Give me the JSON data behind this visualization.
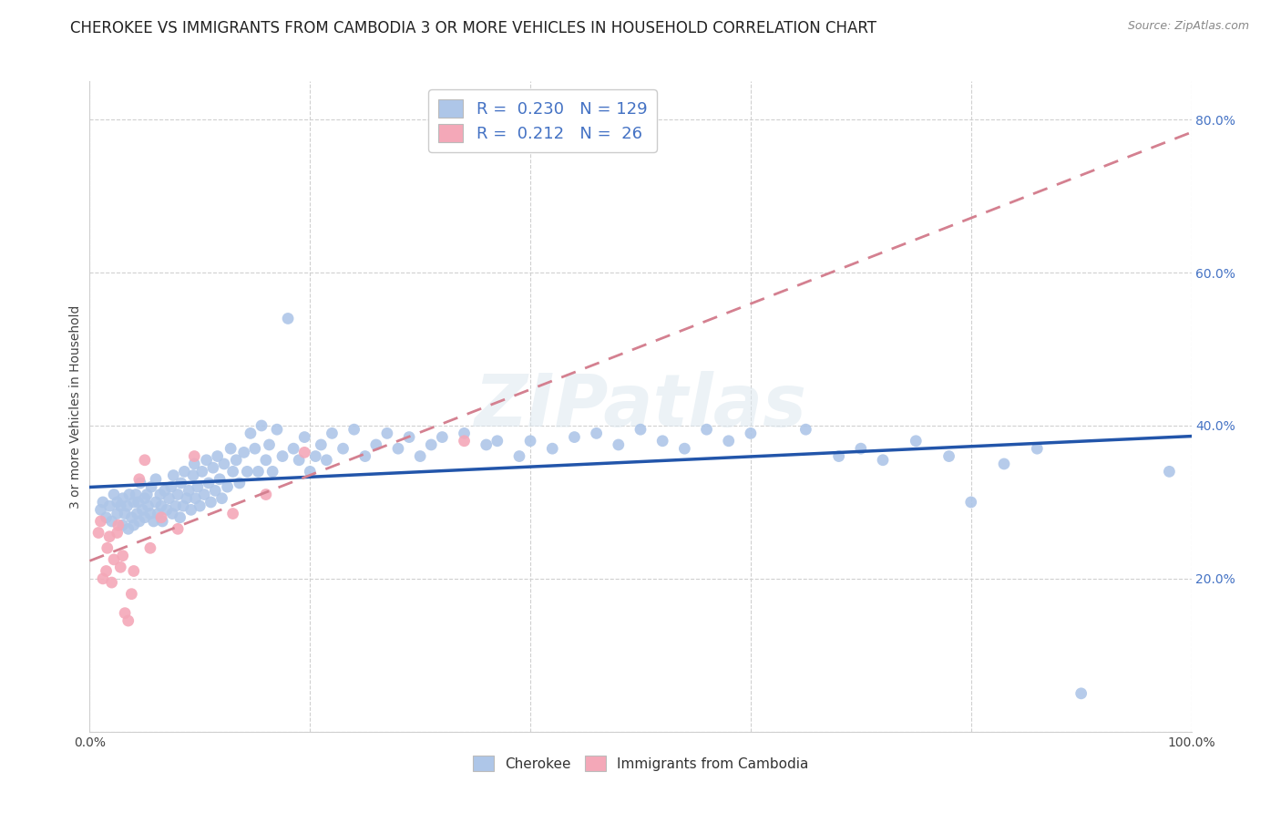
{
  "title": "CHEROKEE VS IMMIGRANTS FROM CAMBODIA 3 OR MORE VEHICLES IN HOUSEHOLD CORRELATION CHART",
  "source": "Source: ZipAtlas.com",
  "ylabel": "3 or more Vehicles in Household",
  "xlim": [
    0,
    1.0
  ],
  "ylim": [
    0,
    0.85
  ],
  "xticks": [
    0.0,
    0.2,
    0.4,
    0.6,
    0.8,
    1.0
  ],
  "xticklabels": [
    "0.0%",
    "",
    "",
    "",
    "",
    "100.0%"
  ],
  "yticks": [
    0.0,
    0.2,
    0.4,
    0.6,
    0.8
  ],
  "yticklabels": [
    "",
    "20.0%",
    "40.0%",
    "60.0%",
    "80.0%"
  ],
  "legend_R_cherokee": "0.230",
  "legend_N_cherokee": "129",
  "legend_R_cambodia": "0.212",
  "legend_N_cambodia": "26",
  "cherokee_color": "#aec6e8",
  "cambodia_color": "#f4a8b8",
  "cherokee_line_color": "#2255aa",
  "cambodia_line_color": "#d48090",
  "background_color": "#ffffff",
  "watermark": "ZIPatlas",
  "cherokee_x": [
    0.01,
    0.012,
    0.015,
    0.018,
    0.02,
    0.022,
    0.025,
    0.025,
    0.028,
    0.03,
    0.03,
    0.032,
    0.034,
    0.035,
    0.036,
    0.038,
    0.04,
    0.04,
    0.042,
    0.043,
    0.044,
    0.045,
    0.046,
    0.048,
    0.05,
    0.05,
    0.052,
    0.053,
    0.055,
    0.056,
    0.058,
    0.06,
    0.06,
    0.062,
    0.064,
    0.065,
    0.066,
    0.068,
    0.07,
    0.072,
    0.074,
    0.075,
    0.076,
    0.078,
    0.08,
    0.082,
    0.083,
    0.085,
    0.086,
    0.088,
    0.09,
    0.092,
    0.094,
    0.095,
    0.096,
    0.098,
    0.1,
    0.102,
    0.104,
    0.106,
    0.108,
    0.11,
    0.112,
    0.114,
    0.116,
    0.118,
    0.12,
    0.122,
    0.125,
    0.128,
    0.13,
    0.133,
    0.136,
    0.14,
    0.143,
    0.146,
    0.15,
    0.153,
    0.156,
    0.16,
    0.163,
    0.166,
    0.17,
    0.175,
    0.18,
    0.185,
    0.19,
    0.195,
    0.2,
    0.205,
    0.21,
    0.215,
    0.22,
    0.23,
    0.24,
    0.25,
    0.26,
    0.27,
    0.28,
    0.29,
    0.3,
    0.31,
    0.32,
    0.34,
    0.36,
    0.37,
    0.39,
    0.4,
    0.42,
    0.44,
    0.46,
    0.48,
    0.5,
    0.52,
    0.54,
    0.56,
    0.58,
    0.6,
    0.65,
    0.68,
    0.7,
    0.72,
    0.75,
    0.78,
    0.8,
    0.83,
    0.86,
    0.9,
    0.98
  ],
  "cherokee_y": [
    0.29,
    0.3,
    0.28,
    0.295,
    0.275,
    0.31,
    0.285,
    0.3,
    0.295,
    0.27,
    0.305,
    0.285,
    0.295,
    0.265,
    0.31,
    0.28,
    0.27,
    0.3,
    0.31,
    0.285,
    0.3,
    0.275,
    0.325,
    0.29,
    0.305,
    0.28,
    0.31,
    0.295,
    0.285,
    0.32,
    0.275,
    0.3,
    0.33,
    0.285,
    0.31,
    0.295,
    0.275,
    0.315,
    0.29,
    0.305,
    0.32,
    0.285,
    0.335,
    0.295,
    0.31,
    0.28,
    0.325,
    0.295,
    0.34,
    0.305,
    0.315,
    0.29,
    0.335,
    0.35,
    0.305,
    0.32,
    0.295,
    0.34,
    0.31,
    0.355,
    0.325,
    0.3,
    0.345,
    0.315,
    0.36,
    0.33,
    0.305,
    0.35,
    0.32,
    0.37,
    0.34,
    0.355,
    0.325,
    0.365,
    0.34,
    0.39,
    0.37,
    0.34,
    0.4,
    0.355,
    0.375,
    0.34,
    0.395,
    0.36,
    0.54,
    0.37,
    0.355,
    0.385,
    0.34,
    0.36,
    0.375,
    0.355,
    0.39,
    0.37,
    0.395,
    0.36,
    0.375,
    0.39,
    0.37,
    0.385,
    0.36,
    0.375,
    0.385,
    0.39,
    0.375,
    0.38,
    0.36,
    0.38,
    0.37,
    0.385,
    0.39,
    0.375,
    0.395,
    0.38,
    0.37,
    0.395,
    0.38,
    0.39,
    0.395,
    0.36,
    0.37,
    0.355,
    0.38,
    0.36,
    0.3,
    0.35,
    0.37,
    0.05,
    0.34
  ],
  "cambodia_x": [
    0.008,
    0.01,
    0.012,
    0.015,
    0.016,
    0.018,
    0.02,
    0.022,
    0.025,
    0.026,
    0.028,
    0.03,
    0.032,
    0.035,
    0.038,
    0.04,
    0.045,
    0.05,
    0.055,
    0.065,
    0.08,
    0.095,
    0.13,
    0.16,
    0.195,
    0.34
  ],
  "cambodia_y": [
    0.26,
    0.275,
    0.2,
    0.21,
    0.24,
    0.255,
    0.195,
    0.225,
    0.26,
    0.27,
    0.215,
    0.23,
    0.155,
    0.145,
    0.18,
    0.21,
    0.33,
    0.355,
    0.24,
    0.28,
    0.265,
    0.36,
    0.285,
    0.31,
    0.365,
    0.38
  ],
  "title_fontsize": 12,
  "axis_label_fontsize": 10,
  "tick_fontsize": 10,
  "legend_fontsize": 13
}
